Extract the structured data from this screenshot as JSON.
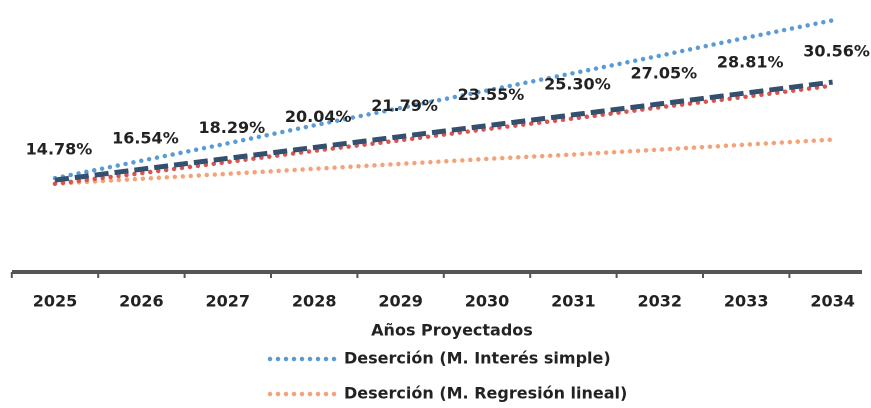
{
  "chart_data": {
    "type": "line",
    "categories": [
      "2025",
      "2026",
      "2027",
      "2028",
      "2029",
      "2030",
      "2031",
      "2032",
      "2033",
      "2034"
    ],
    "x_label": "Años Proyectados",
    "ylim": [
      0,
      42
    ],
    "series": [
      {
        "name": "Deserción (M. Interés simple)",
        "color": "#5b9bd5",
        "style": "dotted",
        "values": [
          15.1,
          17.9,
          20.7,
          23.6,
          26.4,
          29.2,
          32.0,
          34.8,
          37.7,
          40.5
        ]
      },
      {
        "name": "Deserción (M. Regresión lineal)",
        "color": "#f4a27a",
        "style": "dotted",
        "values": [
          14.2,
          15.0,
          15.8,
          16.6,
          17.4,
          18.2,
          18.9,
          19.7,
          20.5,
          21.3
        ]
      },
      {
        "color": "#d9534f",
        "style": "dotted",
        "values": [
          14.2,
          15.9,
          17.7,
          19.5,
          21.2,
          23.0,
          24.7,
          26.5,
          28.2,
          30.0
        ]
      },
      {
        "color": "#34506f",
        "style": "dashed",
        "values": [
          14.78,
          16.54,
          18.29,
          20.04,
          21.79,
          23.55,
          25.3,
          27.05,
          28.81,
          30.56
        ],
        "value_labels": [
          "14.78%",
          "16.54%",
          "18.29%",
          "20.04%",
          "21.79%",
          "23.55%",
          "25.30%",
          "27.05%",
          "28.81%",
          "30.56%"
        ]
      }
    ],
    "legend": [
      0,
      1
    ]
  }
}
